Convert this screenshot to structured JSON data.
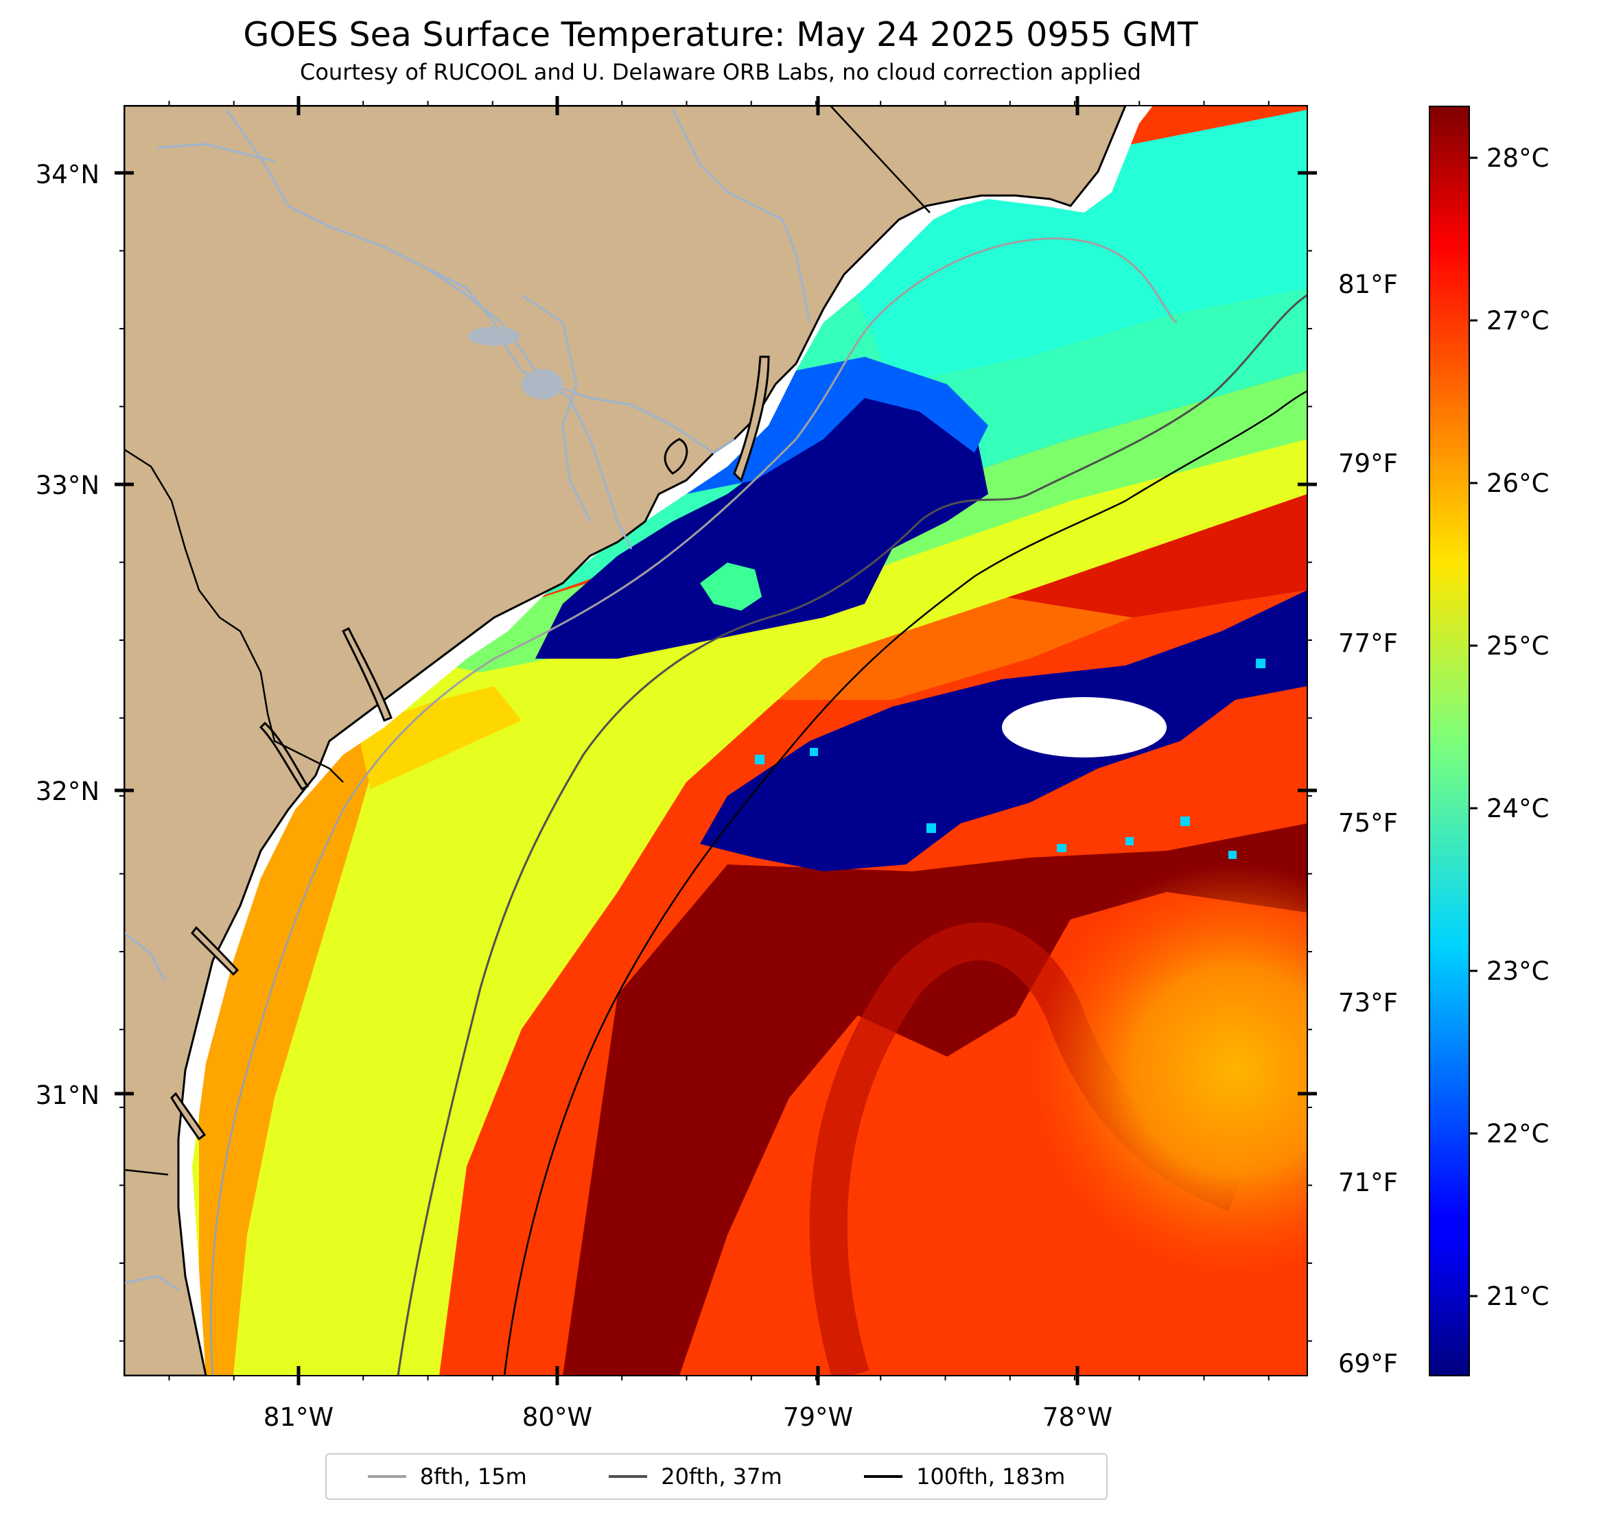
{
  "title": "GOES Sea Surface Temperature: May 24 2025 0955 GMT",
  "subtitle": "Courtesy of RUCOOL and U. Delaware ORB Labs, no cloud correction applied",
  "map": {
    "lon_range": [
      -81.67,
      -77.1
    ],
    "lat_range": [
      30.1,
      34.22
    ],
    "lon_ticks": [
      "81°W",
      "80°W",
      "79°W",
      "78°W"
    ],
    "lat_ticks": [
      "34°N",
      "33°N",
      "32°N",
      "31°N"
    ],
    "land_color": "#cfb48e",
    "river_color": "#9db4cf",
    "cloud_color": "#ffffff"
  },
  "colorbar": {
    "colormap": "jet",
    "range_c": [
      20.5,
      28.3
    ],
    "celsius_ticks": [
      "28°C",
      "27°C",
      "26°C",
      "25°C",
      "24°C",
      "23°C",
      "22°C",
      "21°C"
    ],
    "fahrenheit_ticks": [
      "81°F",
      "79°F",
      "77°F",
      "75°F",
      "73°F",
      "71°F",
      "69°F"
    ]
  },
  "legend": [
    {
      "label": "8fth, 15m",
      "color": "#a0a0a0"
    },
    {
      "label": "20fth, 37m",
      "color": "#505050"
    },
    {
      "label": "100fth, 183m",
      "color": "#000000"
    }
  ]
}
